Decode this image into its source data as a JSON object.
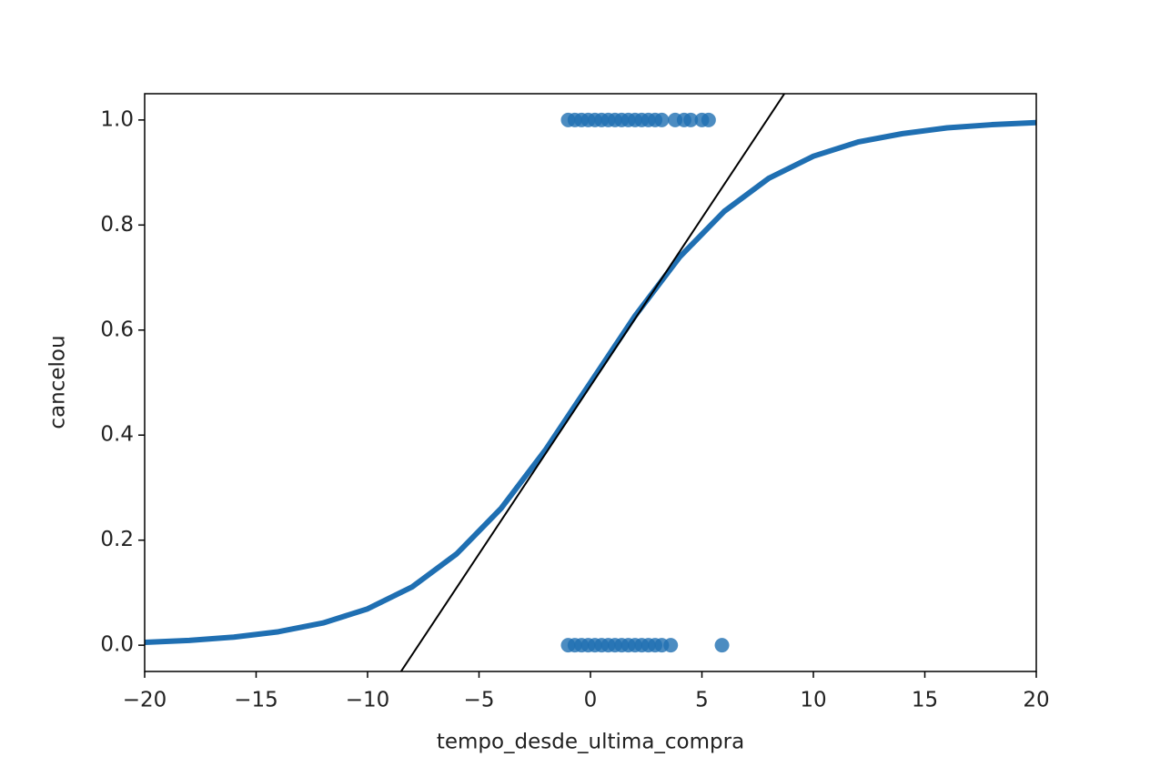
{
  "chart_data": {
    "type": "scatter",
    "x_label": "tempo_desde_ultima_compra",
    "y_label": "cancelou",
    "xlim": [
      -20,
      20
    ],
    "ylim": [
      -0.05,
      1.05
    ],
    "xticks": [
      {
        "value": -20,
        "label": "−20"
      },
      {
        "value": -15,
        "label": "−15"
      },
      {
        "value": -10,
        "label": "−10"
      },
      {
        "value": -5,
        "label": "−5"
      },
      0,
      5,
      10,
      15,
      20
    ],
    "yticks": [
      {
        "value": 0,
        "label": "0.0"
      },
      0.2,
      0.4,
      0.6,
      0.8,
      {
        "value": 1,
        "label": "1.0"
      }
    ],
    "grid": false,
    "series": [
      {
        "mode": "points",
        "color": "#1f6fb2",
        "x": [
          -1,
          -0.7,
          -0.4,
          -0.1,
          0.2,
          0.5,
          0.8,
          1.1,
          1.4,
          1.7,
          2.0,
          2.3,
          2.6,
          2.9,
          3.2,
          3.8,
          4.2,
          4.5,
          5.0,
          5.3
        ],
        "values": [
          1,
          1,
          1,
          1,
          1,
          1,
          1,
          1,
          1,
          1,
          1,
          1,
          1,
          1,
          1,
          1,
          1,
          1,
          1,
          1
        ]
      },
      {
        "mode": "points",
        "color": "#1f6fb2",
        "x": [
          -1,
          -0.7,
          -0.4,
          -0.1,
          0.2,
          0.5,
          0.8,
          1.1,
          1.4,
          1.7,
          2.0,
          2.3,
          2.6,
          2.9,
          3.2,
          3.6,
          5.9
        ],
        "values": [
          0,
          0,
          0,
          0,
          0,
          0,
          0,
          0,
          0,
          0,
          0,
          0,
          0,
          0,
          0,
          0,
          0
        ]
      },
      {
        "mode": "line",
        "color": "#1f6fb2",
        "width": 6,
        "x": [
          -20,
          -18,
          -16,
          -14,
          -12,
          -10,
          -8,
          -6,
          -4,
          -2,
          0,
          2,
          4,
          6,
          8,
          10,
          12,
          14,
          16,
          18,
          20
        ],
        "values": [
          0.0055,
          0.0092,
          0.0154,
          0.0256,
          0.0423,
          0.0691,
          0.111,
          0.174,
          0.261,
          0.373,
          0.5,
          0.627,
          0.739,
          0.826,
          0.889,
          0.931,
          0.958,
          0.974,
          0.985,
          0.991,
          0.995
        ]
      },
      {
        "mode": "line",
        "color": "#000000",
        "width": 2,
        "x": [
          -8.5,
          8.7
        ],
        "values": [
          -0.05,
          1.05
        ]
      }
    ]
  }
}
